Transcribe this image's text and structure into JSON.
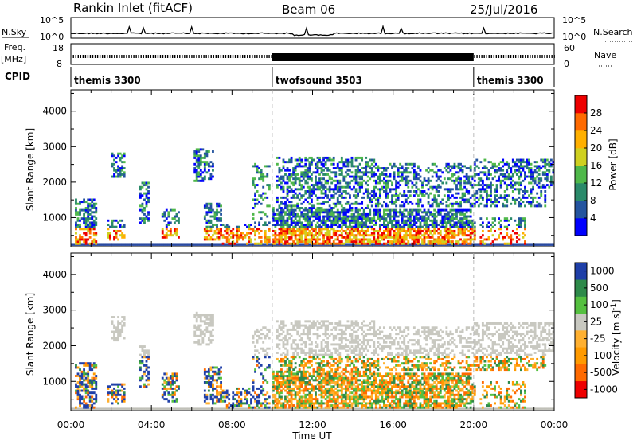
{
  "header": {
    "title": "Rankin Inlet (fitACF)",
    "beam": "Beam 06",
    "date": "25/Jul/2016"
  },
  "strips": {
    "nsky_label": "N.Sky",
    "nsearch_label": "N.Search",
    "count_top": "10^5",
    "count_bottom": "10^0",
    "freq_label": "Freq.",
    "freq_unit": "[MHz]",
    "freq_ticks": [
      "18",
      "8"
    ],
    "nave_label": "Nave",
    "nave_ticks": [
      "60",
      "0"
    ],
    "cpid_label": "CPID",
    "cpid_segments": [
      {
        "name": "themis 3300",
        "start": 0,
        "end": 10
      },
      {
        "name": "twofsound 3503",
        "start": 10,
        "end": 20
      },
      {
        "name": "themis 3300",
        "start": 20,
        "end": 24
      }
    ]
  },
  "colors": {
    "power": [
      "#0000ff",
      "#24549f",
      "#2a8a6a",
      "#4fb84a",
      "#cfd020",
      "#ffb000",
      "#ff6a00",
      "#ee0000"
    ],
    "velocity": [
      "#ee0000",
      "#ff6a00",
      "#ff9a00",
      "#ffb030",
      "#c8c8c0",
      "#55c040",
      "#2e8a4a",
      "#1f3fa8"
    ],
    "ground_scatter": "#c0c0b8"
  },
  "chart_data": [
    {
      "type": "heatmap",
      "title": "Power",
      "xlabel": "",
      "ylabel": "Slant Range [km]",
      "xlim": [
        0,
        24
      ],
      "ylim": [
        180,
        4600
      ],
      "x_ticks": [
        "00:00",
        "04:00",
        "08:00",
        "12:00",
        "16:00",
        "20:00",
        "00:00"
      ],
      "y_ticks": [
        "1000",
        "2000",
        "3000",
        "4000"
      ],
      "colorbar": {
        "label": "Power [dB]",
        "ticks": [
          "4",
          "8",
          "12",
          "16",
          "20",
          "24",
          "28"
        ],
        "range": [
          0,
          30
        ]
      }
    },
    {
      "type": "heatmap",
      "title": "Velocity",
      "xlabel": "Time UT",
      "ylabel": "Slant Range [km]",
      "xlim": [
        0,
        24
      ],
      "ylim": [
        180,
        4600
      ],
      "x_ticks": [
        "00:00",
        "04:00",
        "08:00",
        "12:00",
        "16:00",
        "20:00",
        "00:00"
      ],
      "y_ticks": [
        "1000",
        "2000",
        "3000",
        "4000"
      ],
      "colorbar": {
        "label": "Velocity [m s^-1]",
        "ticks": [
          "1000",
          "500",
          "100",
          "25",
          "-25",
          "-100",
          "-500",
          "-1000"
        ]
      }
    }
  ]
}
